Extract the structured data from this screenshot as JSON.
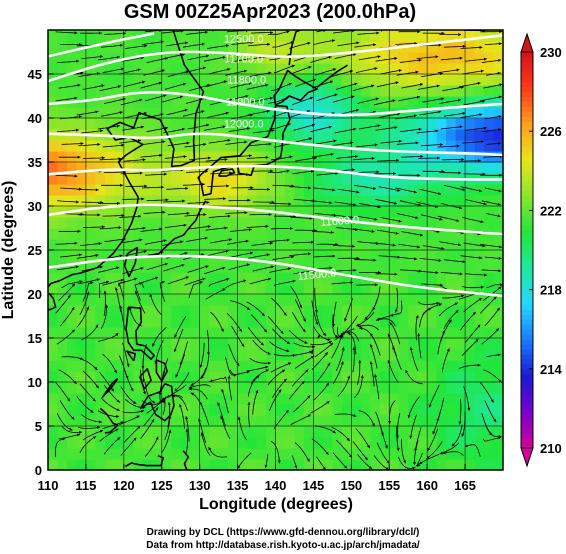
{
  "chart_data": {
    "type": "heatmap",
    "title": "GSM 00Z25Apr2023 (200.0hPa)",
    "xlabel": "Longitude (degrees)",
    "ylabel": "Latitude  (degrees)",
    "xlim": [
      110,
      170
    ],
    "ylim": [
      0,
      50
    ],
    "x_ticks": [
      110,
      115,
      120,
      125,
      130,
      135,
      140,
      145,
      150,
      155,
      160,
      165
    ],
    "y_ticks": [
      0,
      5,
      10,
      15,
      20,
      25,
      30,
      35,
      40,
      45
    ],
    "grid": true,
    "colorbar": {
      "min": 210,
      "max": 230,
      "ticks": [
        "210",
        "214",
        "218",
        "222",
        "226",
        "230"
      ],
      "tick_values": [
        210,
        214,
        218,
        222,
        226,
        230
      ],
      "colors": [
        "#d6009a",
        "#7a00d0",
        "#1a1ad6",
        "#1a7aff",
        "#22d8ff",
        "#1ee8a0",
        "#22e63a",
        "#8ae62a",
        "#e6e61a",
        "#ffa01a",
        "#ff3a1a",
        "#d6121a"
      ]
    },
    "contours": [
      {
        "label": "11500.0",
        "points": [
          [
            110,
            23
          ],
          [
            120,
            24.2
          ],
          [
            130,
            24.4
          ],
          [
            140,
            23.6
          ],
          [
            150,
            22
          ],
          [
            160,
            20.6
          ],
          [
            170,
            19.8
          ]
        ]
      },
      {
        "label": "11600.0",
        "points": [
          [
            110,
            29
          ],
          [
            120,
            30.2
          ],
          [
            130,
            30
          ],
          [
            140,
            29.4
          ],
          [
            150,
            28.2
          ],
          [
            160,
            27.4
          ],
          [
            170,
            26.8
          ]
        ]
      },
      {
        "label": "",
        "points": [
          [
            110,
            33.6
          ],
          [
            118,
            34.2
          ],
          [
            124,
            34
          ],
          [
            130,
            34.4
          ],
          [
            138,
            34.6
          ],
          [
            146,
            34.2
          ],
          [
            155,
            33.2
          ],
          [
            165,
            33
          ],
          [
            170,
            33
          ]
        ]
      },
      {
        "label": "",
        "points": [
          [
            110,
            38.2
          ],
          [
            118,
            38
          ],
          [
            124,
            37.6
          ],
          [
            130,
            38.4
          ],
          [
            138,
            37.6
          ],
          [
            146,
            36.8
          ],
          [
            155,
            36.2
          ],
          [
            165,
            36
          ],
          [
            170,
            35.8
          ]
        ]
      },
      {
        "label": "",
        "points": [
          [
            110,
            41.6
          ],
          [
            116,
            42
          ],
          [
            122,
            43
          ],
          [
            128,
            42.8
          ],
          [
            135,
            41.6
          ],
          [
            143,
            40.6
          ],
          [
            150,
            40.2
          ],
          [
            160,
            41
          ],
          [
            170,
            41.6
          ]
        ]
      },
      {
        "label": "",
        "points": [
          [
            110,
            44.2
          ],
          [
            118,
            46.4
          ],
          [
            126,
            47.6
          ],
          [
            134,
            47.4
          ],
          [
            142,
            46.8
          ],
          [
            152,
            47.6
          ],
          [
            162,
            48.6
          ],
          [
            170,
            49.4
          ]
        ]
      },
      {
        "label": "",
        "points": [
          [
            110,
            47
          ],
          [
            118,
            48.6
          ],
          [
            124,
            49.6
          ]
        ]
      }
    ],
    "annotations": [
      "11500.0",
      "11600.0",
      "12500.0",
      "11700.0",
      "11800.0",
      "11900.0",
      "12000.0"
    ],
    "footer": [
      "Drawing by DCL (https://www.gfd-dennou.org/library/dcl/)",
      "Data from http://database.rish.kyoto-u.ac.jp/arch/jmadata/"
    ]
  }
}
